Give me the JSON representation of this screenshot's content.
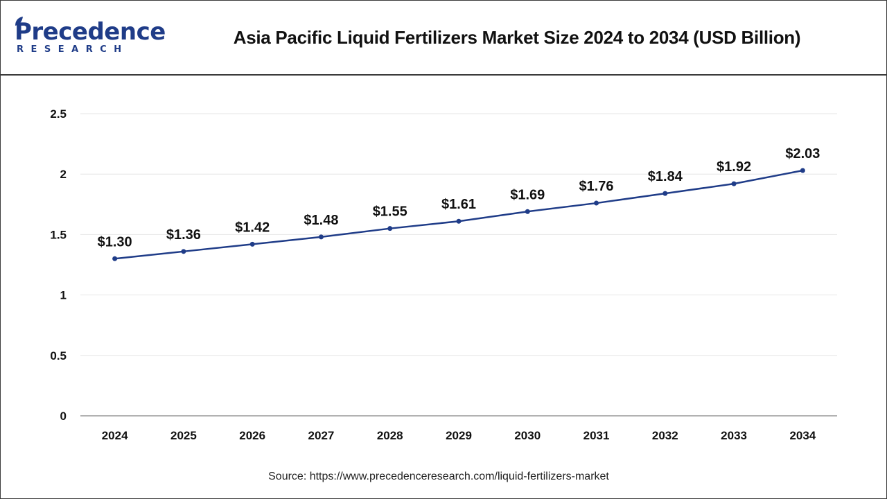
{
  "header": {
    "logo_main": "Precedence",
    "logo_sub": "RESEARCH",
    "title": "Asia Pacific Liquid Fertilizers Market Size 2024 to 2034 (USD Billion)"
  },
  "footer": {
    "source": "Source: https://www.precedenceresearch.com/liquid-fertilizers-market"
  },
  "colors": {
    "line": "#1f3c88",
    "grid": "#e6e6e6",
    "axis": "#999999",
    "text": "#111111"
  },
  "chart_data": {
    "type": "line",
    "categories": [
      "2024",
      "2025",
      "2026",
      "2027",
      "2028",
      "2029",
      "2030",
      "2031",
      "2032",
      "2033",
      "2034"
    ],
    "series": [
      {
        "values": [
          1.3,
          1.36,
          1.42,
          1.48,
          1.55,
          1.61,
          1.69,
          1.76,
          1.84,
          1.92,
          2.03
        ],
        "labels": [
          "$1.30",
          "$1.36",
          "$1.42",
          "$1.48",
          "$1.55",
          "$1.61",
          "$1.69",
          "$1.76",
          "$1.84",
          "$1.92",
          "$2.03"
        ]
      }
    ],
    "yticks": [
      "0",
      "0.5",
      "1",
      "1.5",
      "2",
      "2.5"
    ],
    "ylim": [
      0,
      2.5
    ],
    "grid": true,
    "markers": true
  }
}
